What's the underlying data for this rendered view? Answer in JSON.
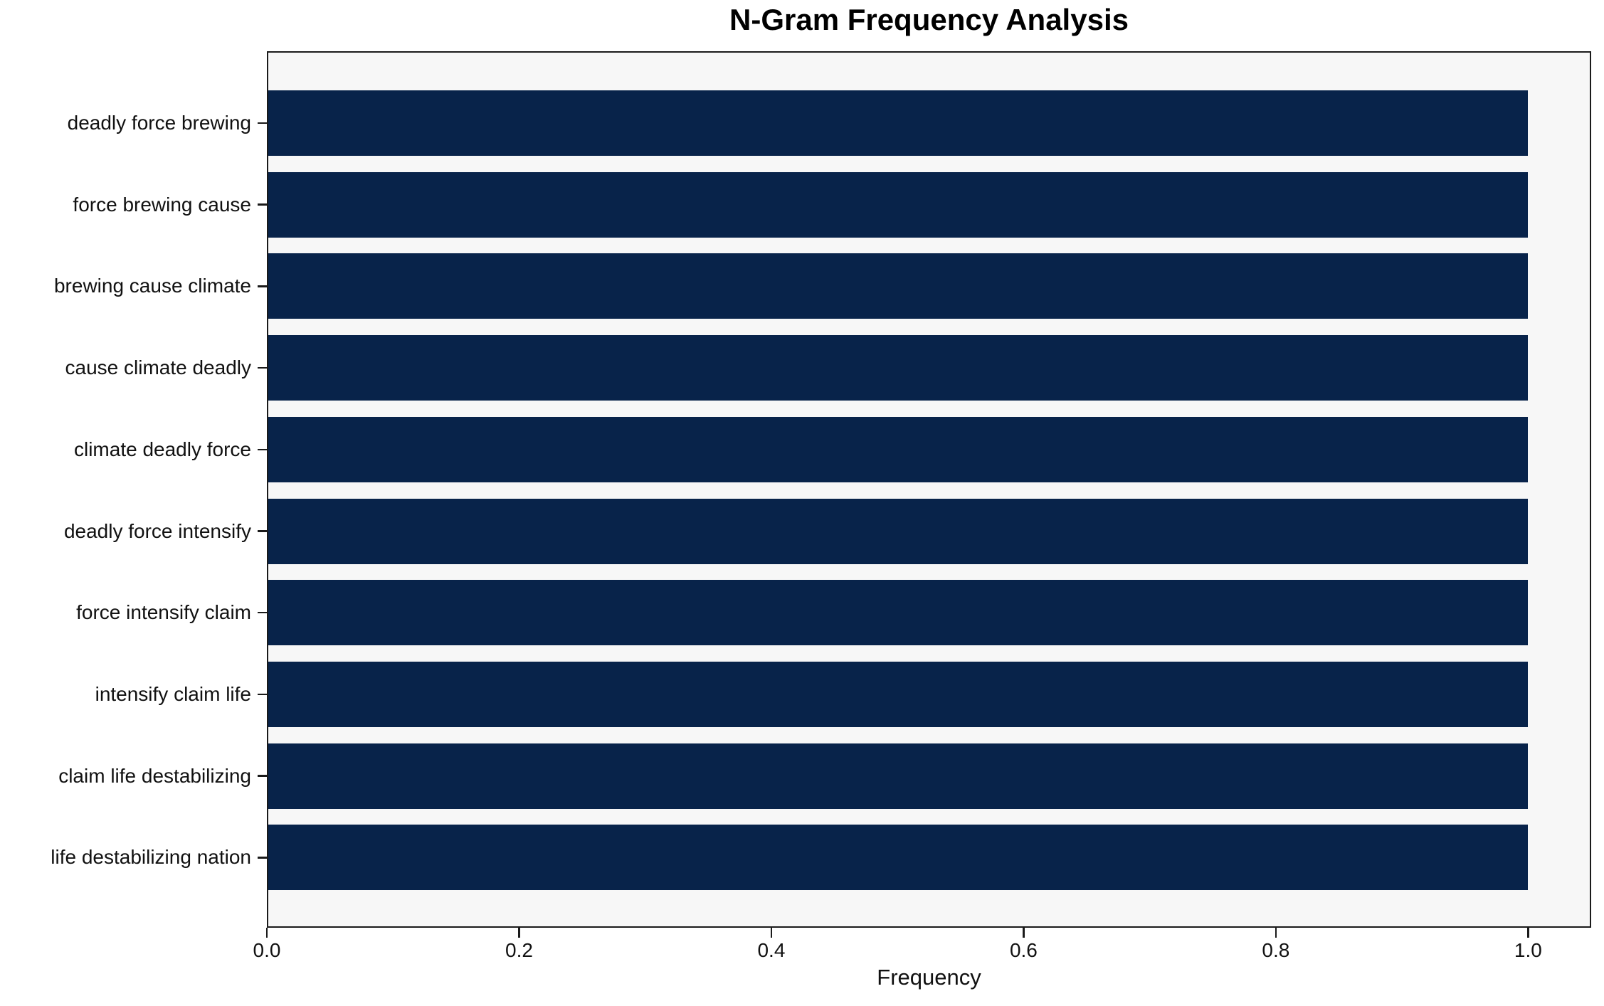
{
  "chart_data": {
    "type": "bar",
    "orientation": "horizontal",
    "title": "N-Gram Frequency Analysis",
    "xlabel": "Frequency",
    "ylabel": "",
    "categories": [
      "deadly force brewing",
      "force brewing cause",
      "brewing cause climate",
      "cause climate deadly",
      "climate deadly force",
      "deadly force intensify",
      "force intensify claim",
      "intensify claim life",
      "claim life destabilizing",
      "life destabilizing nation"
    ],
    "values": [
      1.0,
      1.0,
      1.0,
      1.0,
      1.0,
      1.0,
      1.0,
      1.0,
      1.0,
      1.0
    ],
    "x_tick_labels": [
      "0.0",
      "0.2",
      "0.4",
      "0.6",
      "0.8",
      "1.0"
    ],
    "x_tick_values": [
      0.0,
      0.2,
      0.4,
      0.6,
      0.8,
      1.0
    ],
    "xlim": [
      0,
      1.05
    ],
    "grid": false,
    "legend": false,
    "colors": {
      "bar": "#08234a",
      "plot_background": "#f7f7f7",
      "figure_background": "#ffffff",
      "axis": "#1a1a1a",
      "text": "#111111"
    }
  }
}
